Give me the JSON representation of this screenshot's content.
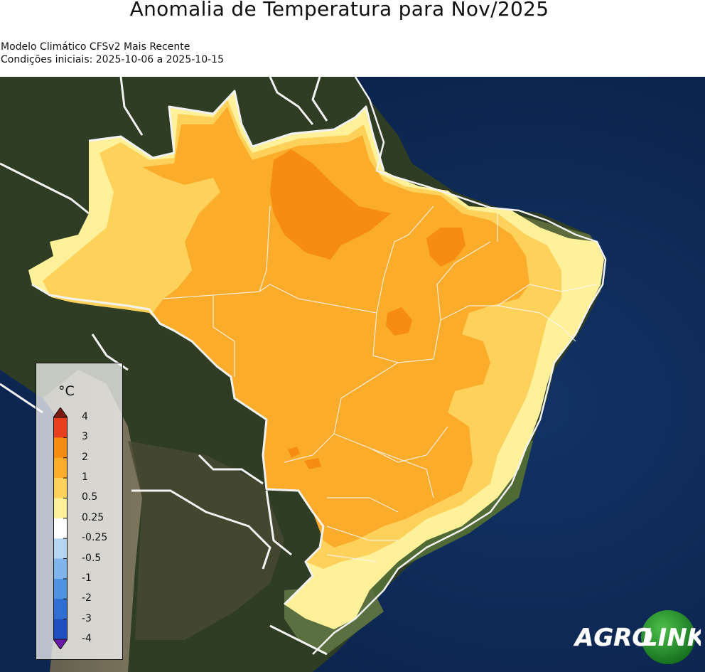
{
  "header": {
    "title": "Anomalia de Temperatura para Nov/2025",
    "model_line": "Modelo Climático CFSv2 Mais Recente",
    "conditions_line": "Condições iniciais: 2025-10-06 a 2025-10-15"
  },
  "legend": {
    "unit": "°C",
    "labels": [
      "4",
      "3",
      "2",
      "1",
      "0.5",
      "0.25",
      "-0.25",
      "-0.5",
      "-1",
      "-2",
      "-3",
      "-4"
    ],
    "bins": [
      {
        "range": "3 to 4",
        "color": "#e8401c"
      },
      {
        "range": "2 to 3",
        "color": "#f68c12"
      },
      {
        "range": "1 to 2",
        "color": "#fbac2b"
      },
      {
        "range": "0.5 to 1",
        "color": "#fdd15a"
      },
      {
        "range": "0.25 to 0.5",
        "color": "#fff09a"
      },
      {
        "range": "-0.25 to 0.25",
        "color": "#ffffff"
      },
      {
        "range": "-0.5 to -0.25",
        "color": "#b5d6f2"
      },
      {
        "range": "-1 to -0.5",
        "color": "#7fb5ea"
      },
      {
        "range": "-2 to -1",
        "color": "#4e92e0"
      },
      {
        "range": "-3 to -2",
        "color": "#2f6fd4"
      },
      {
        "range": "-4 to -3",
        "color": "#1f4fc0"
      }
    ],
    "over_color": "#7a1a10",
    "under_color": "#6a1aa8"
  },
  "map": {
    "ocean_color": "#0e2a55",
    "land_color": "#2d3b22",
    "border_color": "#f2f2f2"
  },
  "logo": {
    "text_left": "AGRO",
    "text_right": "LINK",
    "circle_color": "#1c8a2c"
  }
}
